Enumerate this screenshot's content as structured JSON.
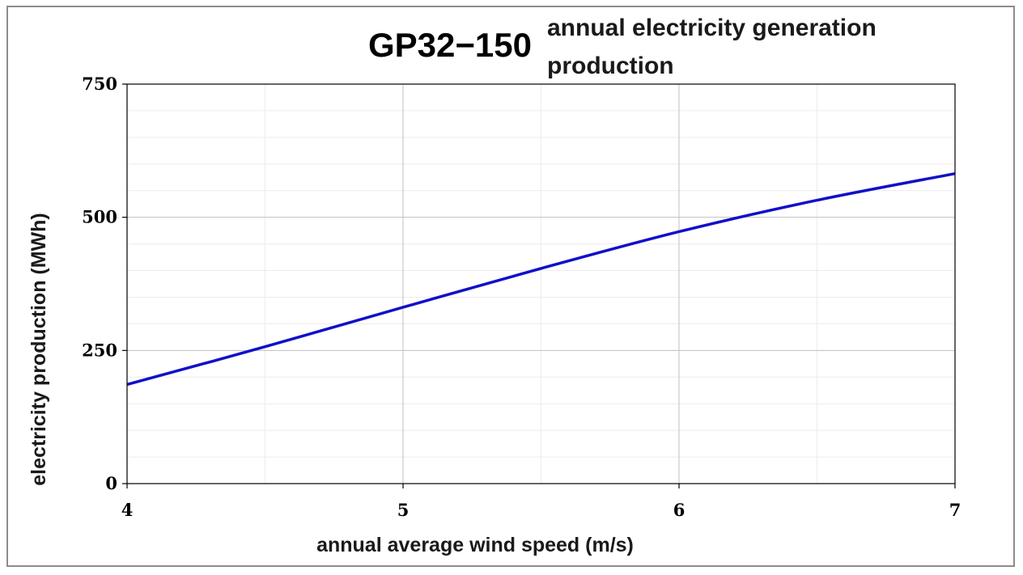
{
  "chart_data": {
    "type": "line",
    "title_main": "GP32−150",
    "title_sub_line1": "annual electricity generation",
    "title_sub_line2": "production",
    "xlabel": "annual average wind speed (m/s)",
    "ylabel": "electricity production (MWh)",
    "xlim": [
      4,
      7
    ],
    "ylim": [
      0,
      750
    ],
    "x_ticks": [
      "4",
      "5",
      "6",
      "7"
    ],
    "y_ticks": [
      "0",
      "250",
      "500",
      "750"
    ],
    "grid": true,
    "legend": "none",
    "series": [
      {
        "color": "#1010c8",
        "x": [
          4.0,
          4.5,
          5.0,
          5.5,
          6.0,
          6.5,
          7.0
        ],
        "y": [
          186,
          257,
          331,
          404,
          473,
          532,
          582
        ]
      }
    ]
  },
  "colors": {
    "major_grid": "#c0c0c0",
    "minor_grid": "#ececec",
    "axis": "#000000",
    "frame": "#8c8c8c"
  }
}
